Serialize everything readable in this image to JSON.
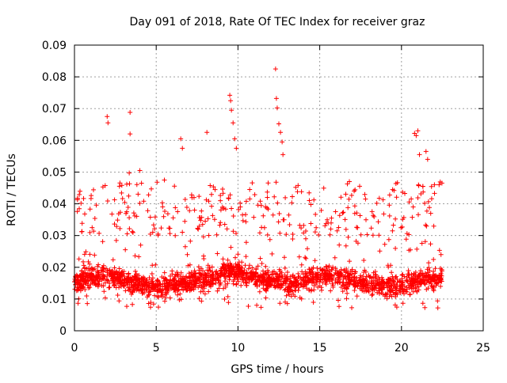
{
  "chart_data": {
    "type": "scatter",
    "title": "Day 091 of 2018, Rate Of TEC Index for receiver graz",
    "xlabel": "GPS time / hours",
    "ylabel": "ROTI / TECUs",
    "xlim": [
      0,
      25
    ],
    "ylim": [
      0,
      0.09
    ],
    "xticks": [
      0,
      5,
      10,
      15,
      20,
      25
    ],
    "xtick_labels": [
      "0",
      "5",
      "10",
      "15",
      "20",
      "25"
    ],
    "yticks": [
      0,
      0.01,
      0.02,
      0.03,
      0.04,
      0.05,
      0.06,
      0.07,
      0.08,
      0.09
    ],
    "ytick_labels": [
      "0",
      "0.01",
      "0.02",
      "0.03",
      "0.04",
      "0.05",
      "0.06",
      "0.07",
      "0.08",
      "0.09"
    ],
    "grid": true,
    "marker": "+",
    "marker_color": "#ff0000",
    "data_time_range": [
      0,
      22.5
    ],
    "typical_range": [
      0.007,
      0.03
    ],
    "series": [
      {
        "name": "ROTI",
        "x": [
          2.0,
          2.05,
          3.4,
          3.4,
          3.35,
          4.0,
          4.1,
          5.5,
          6.5,
          6.6,
          8.1,
          9.5,
          9.55,
          9.6,
          9.7,
          9.8,
          9.9,
          12.3,
          12.35,
          12.4,
          12.5,
          12.6,
          12.7,
          12.75,
          17.8,
          20.8,
          20.9,
          21.0,
          21.1,
          21.5,
          21.6,
          22.3
        ],
        "y": [
          0.0675,
          0.0655,
          0.0688,
          0.062,
          0.0497,
          0.0505,
          0.0465,
          0.0475,
          0.0605,
          0.0575,
          0.0625,
          0.0742,
          0.0725,
          0.0695,
          0.0655,
          0.0605,
          0.0575,
          0.0825,
          0.0732,
          0.0702,
          0.0652,
          0.0625,
          0.0595,
          0.0555,
          0.0415,
          0.0622,
          0.0615,
          0.063,
          0.0555,
          0.0565,
          0.054,
          0.046
        ]
      }
    ]
  }
}
